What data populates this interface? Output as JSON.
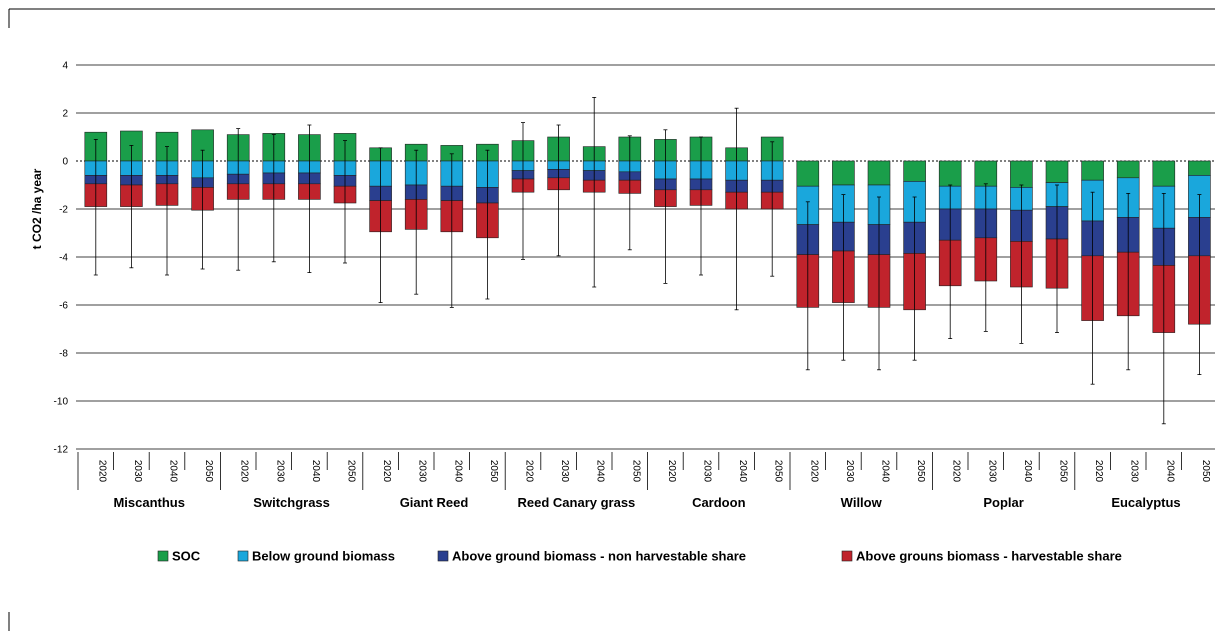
{
  "chart_data": {
    "type": "bar",
    "stacked": true,
    "title": "",
    "ylabel": "t CO2 /ha year",
    "ylim": [
      -12,
      4
    ],
    "yticks": [
      4,
      2,
      0,
      -2,
      -4,
      -6,
      -8,
      -10,
      -12
    ],
    "grid": true,
    "legend_position": "bottom",
    "years": [
      "2020",
      "2030",
      "2040",
      "2050"
    ],
    "groups": [
      "Miscanthus",
      "Switchgrass",
      "Giant Reed",
      "Reed Canary grass",
      "Cardoon",
      "Willow",
      "Poplar",
      "Eucalyptus"
    ],
    "series": [
      {
        "name": "SOC",
        "color": "#1a9e4a"
      },
      {
        "name": "Below ground biomass",
        "color": "#1aa7dc"
      },
      {
        "name": "Above ground biomass - non harvestable share",
        "color": "#2a3f8f"
      },
      {
        "name": "Above grouns biomass - harvestable share",
        "color": "#c0232c"
      }
    ],
    "bars": [
      {
        "group": "Miscanthus",
        "year": "2020",
        "soc": 1.2,
        "below": -0.6,
        "above_non_harvestable": -0.35,
        "above_harvestable": -0.95,
        "err_low": -4.75,
        "err_high": 0.9
      },
      {
        "group": "Miscanthus",
        "year": "2030",
        "soc": 1.25,
        "below": -0.6,
        "above_non_harvestable": -0.4,
        "above_harvestable": -0.9,
        "err_low": -4.45,
        "err_high": 0.65
      },
      {
        "group": "Miscanthus",
        "year": "2040",
        "soc": 1.2,
        "below": -0.6,
        "above_non_harvestable": -0.35,
        "above_harvestable": -0.9,
        "err_low": -4.75,
        "err_high": 0.6
      },
      {
        "group": "Miscanthus",
        "year": "2050",
        "soc": 1.3,
        "below": -0.7,
        "above_non_harvestable": -0.4,
        "above_harvestable": -0.95,
        "err_low": -4.5,
        "err_high": 0.45
      },
      {
        "group": "Switchgrass",
        "year": "2020",
        "soc": 1.1,
        "below": -0.55,
        "above_non_harvestable": -0.4,
        "above_harvestable": -0.65,
        "err_low": -4.55,
        "err_high": 1.35
      },
      {
        "group": "Switchgrass",
        "year": "2030",
        "soc": 1.15,
        "below": -0.5,
        "above_non_harvestable": -0.45,
        "above_harvestable": -0.65,
        "err_low": -4.2,
        "err_high": 1.1
      },
      {
        "group": "Switchgrass",
        "year": "2040",
        "soc": 1.1,
        "below": -0.5,
        "above_non_harvestable": -0.45,
        "above_harvestable": -0.65,
        "err_low": -4.65,
        "err_high": 1.5
      },
      {
        "group": "Switchgrass",
        "year": "2050",
        "soc": 1.15,
        "below": -0.6,
        "above_non_harvestable": -0.45,
        "above_harvestable": -0.7,
        "err_low": -4.25,
        "err_high": 0.85
      },
      {
        "group": "Giant Reed",
        "year": "2020",
        "soc": 0.55,
        "below": -1.05,
        "above_non_harvestable": -0.6,
        "above_harvestable": -1.3,
        "err_low": -5.9,
        "err_high": 0.55
      },
      {
        "group": "Giant Reed",
        "year": "2030",
        "soc": 0.7,
        "below": -1.0,
        "above_non_harvestable": -0.6,
        "above_harvestable": -1.25,
        "err_low": -5.55,
        "err_high": 0.45
      },
      {
        "group": "Giant Reed",
        "year": "2040",
        "soc": 0.65,
        "below": -1.05,
        "above_non_harvestable": -0.6,
        "above_harvestable": -1.3,
        "err_low": -6.1,
        "err_high": 0.3
      },
      {
        "group": "Giant Reed",
        "year": "2050",
        "soc": 0.7,
        "below": -1.1,
        "above_non_harvestable": -0.65,
        "above_harvestable": -1.45,
        "err_low": -5.75,
        "err_high": 0.45
      },
      {
        "group": "Reed Canary grass",
        "year": "2020",
        "soc": 0.85,
        "below": -0.4,
        "above_non_harvestable": -0.35,
        "above_harvestable": -0.55,
        "err_low": -4.1,
        "err_high": 1.6
      },
      {
        "group": "Reed Canary grass",
        "year": "2030",
        "soc": 1.0,
        "below": -0.35,
        "above_non_harvestable": -0.35,
        "above_harvestable": -0.5,
        "err_low": -3.95,
        "err_high": 1.5
      },
      {
        "group": "Reed Canary grass",
        "year": "2040",
        "soc": 0.6,
        "below": -0.4,
        "above_non_harvestable": -0.4,
        "above_harvestable": -0.5,
        "err_low": -5.25,
        "err_high": 2.65
      },
      {
        "group": "Reed Canary grass",
        "year": "2050",
        "soc": 1.0,
        "below": -0.45,
        "above_non_harvestable": -0.35,
        "above_harvestable": -0.55,
        "err_low": -3.7,
        "err_high": 1.05
      },
      {
        "group": "Cardoon",
        "year": "2020",
        "soc": 0.9,
        "below": -0.75,
        "above_non_harvestable": -0.45,
        "above_harvestable": -0.7,
        "err_low": -5.1,
        "err_high": 1.3
      },
      {
        "group": "Cardoon",
        "year": "2030",
        "soc": 1.0,
        "below": -0.75,
        "above_non_harvestable": -0.45,
        "above_harvestable": -0.65,
        "err_low": -4.75,
        "err_high": 1.0
      },
      {
        "group": "Cardoon",
        "year": "2040",
        "soc": 0.55,
        "below": -0.8,
        "above_non_harvestable": -0.5,
        "above_harvestable": -0.7,
        "err_low": -6.2,
        "err_high": 2.2
      },
      {
        "group": "Cardoon",
        "year": "2050",
        "soc": 1.0,
        "below": -0.8,
        "above_non_harvestable": -0.5,
        "above_harvestable": -0.7,
        "err_low": -4.8,
        "err_high": 0.8
      },
      {
        "group": "Willow",
        "year": "2020",
        "soc": -1.05,
        "below": -1.6,
        "above_non_harvestable": -1.25,
        "above_harvestable": -2.2,
        "err_low": -8.7,
        "err_high": -1.7
      },
      {
        "group": "Willow",
        "year": "2030",
        "soc": -1.0,
        "below": -1.55,
        "above_non_harvestable": -1.2,
        "above_harvestable": -2.15,
        "err_low": -8.3,
        "err_high": -1.4
      },
      {
        "group": "Willow",
        "year": "2040",
        "soc": -1.0,
        "below": -1.65,
        "above_non_harvestable": -1.25,
        "above_harvestable": -2.2,
        "err_low": -8.7,
        "err_high": -1.5
      },
      {
        "group": "Willow",
        "year": "2050",
        "soc": -0.85,
        "below": -1.7,
        "above_non_harvestable": -1.3,
        "above_harvestable": -2.35,
        "err_low": -8.3,
        "err_high": -1.5
      },
      {
        "group": "Poplar",
        "year": "2020",
        "soc": -1.05,
        "below": -0.95,
        "above_non_harvestable": -1.3,
        "above_harvestable": -1.9,
        "err_low": -7.4,
        "err_high": -1.0
      },
      {
        "group": "Poplar",
        "year": "2030",
        "soc": -1.05,
        "below": -0.95,
        "above_non_harvestable": -1.2,
        "above_harvestable": -1.8,
        "err_low": -7.1,
        "err_high": -0.95
      },
      {
        "group": "Poplar",
        "year": "2040",
        "soc": -1.1,
        "below": -0.95,
        "above_non_harvestable": -1.3,
        "above_harvestable": -1.9,
        "err_low": -7.6,
        "err_high": -1.0
      },
      {
        "group": "Poplar",
        "year": "2050",
        "soc": -0.9,
        "below": -1.0,
        "above_non_harvestable": -1.35,
        "above_harvestable": -2.05,
        "err_low": -7.15,
        "err_high": -1.0
      },
      {
        "group": "Eucalyptus",
        "year": "2020",
        "soc": -0.8,
        "below": -1.7,
        "above_non_harvestable": -1.45,
        "above_harvestable": -2.7,
        "err_low": -9.3,
        "err_high": -1.3
      },
      {
        "group": "Eucalyptus",
        "year": "2030",
        "soc": -0.7,
        "below": -1.65,
        "above_non_harvestable": -1.45,
        "above_harvestable": -2.65,
        "err_low": -8.7,
        "err_high": -1.35
      },
      {
        "group": "Eucalyptus",
        "year": "2040",
        "soc": -1.05,
        "below": -1.75,
        "above_non_harvestable": -1.55,
        "above_harvestable": -2.8,
        "err_low": -10.95,
        "err_high": -1.35
      },
      {
        "group": "Eucalyptus",
        "year": "2050",
        "soc": -0.6,
        "below": -1.75,
        "above_non_harvestable": -1.6,
        "above_harvestable": -2.85,
        "err_low": -8.9,
        "err_high": -1.4
      }
    ]
  }
}
